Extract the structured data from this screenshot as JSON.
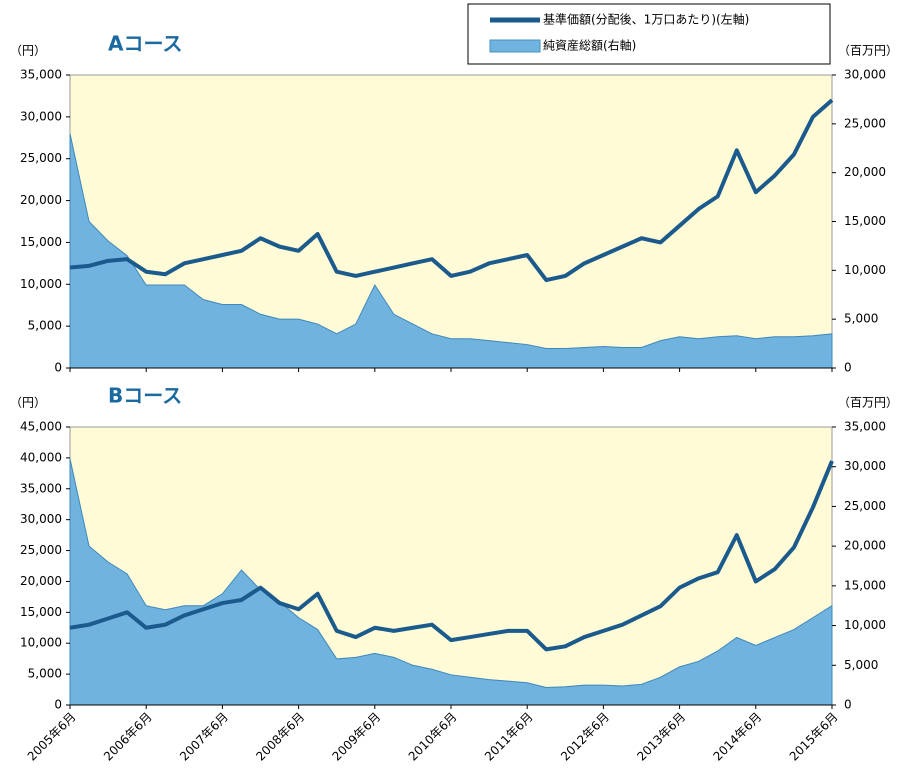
{
  "chart_data": [
    {
      "type": "line",
      "title": "Aコース",
      "y_label": "（円）",
      "y2_label": "（百万円）",
      "categories": [
        null,
        null,
        null,
        null,
        null,
        null,
        null,
        null,
        null,
        null,
        null,
        null,
        null,
        null,
        null,
        null,
        null,
        null,
        null,
        null,
        null,
        null,
        null,
        null,
        null,
        null,
        null,
        null,
        null,
        null,
        null,
        null,
        null,
        null,
        null,
        null,
        null,
        null,
        null,
        null,
        null
      ],
      "ylim": [
        0,
        35000
      ],
      "yticks": [
        0,
        {
          "value": 5000,
          "label": "5,000"
        },
        {
          "value": 10000,
          "label": "10,000"
        },
        {
          "value": 15000,
          "label": "15,000"
        },
        {
          "value": 20000,
          "label": "20,000"
        },
        {
          "value": 25000,
          "label": "25,000"
        },
        {
          "value": 30000,
          "label": "30,000"
        },
        {
          "value": 35000,
          "label": "35,000"
        }
      ],
      "y2lim": [
        0,
        30000
      ],
      "y2ticks": [
        0,
        {
          "value": 5000,
          "label": "5,000"
        },
        {
          "value": 10000,
          "label": "10,000"
        },
        {
          "value": 15000,
          "label": "15,000"
        },
        {
          "value": 20000,
          "label": "20,000"
        },
        {
          "value": 25000,
          "label": "25,000"
        },
        {
          "value": 30000,
          "label": "30,000"
        }
      ],
      "series": [
        {
          "name": "純資産総額(右軸)",
          "type": "area",
          "axis": "y2",
          "color": "#6fb3de",
          "values": [
            24000,
            15000,
            13000,
            11500,
            8500,
            8500,
            8500,
            7000,
            6500,
            6500,
            5500,
            5000,
            5000,
            4500,
            3500,
            4500,
            8500,
            5500,
            4500,
            3500,
            3000,
            3000,
            2800,
            2600,
            2400,
            2000,
            2000,
            2100,
            2200,
            2100,
            2100,
            2800,
            3200,
            3000,
            3200,
            3300,
            3000,
            3200,
            3200,
            3300,
            3500
          ]
        },
        {
          "name": "基準価額(分配後、1万口あたり)(左軸)",
          "type": "line",
          "color": "#1a5a8c",
          "values": [
            12000,
            12200,
            12800,
            13000,
            11500,
            11200,
            12500,
            13000,
            13500,
            14000,
            15500,
            14500,
            14000,
            16000,
            11500,
            11000,
            11500,
            12000,
            12500,
            13000,
            11000,
            11500,
            12500,
            13000,
            13500,
            10500,
            11000,
            12500,
            13500,
            14500,
            15500,
            15000,
            17000,
            19000,
            20500,
            26000,
            21000,
            23000,
            25500,
            30000,
            32000
          ]
        }
      ]
    },
    {
      "type": "line",
      "title": "Bコース",
      "y_label": "（円）",
      "y2_label": "（百万円）",
      "categories": [
        "2005年6月",
        null,
        null,
        null,
        "2006年6月",
        null,
        null,
        null,
        "2007年6月",
        null,
        null,
        null,
        "2008年6月",
        null,
        null,
        null,
        "2009年6月",
        null,
        null,
        null,
        "2010年6月",
        null,
        null,
        null,
        "2011年6月",
        null,
        null,
        null,
        "2012年6月",
        null,
        null,
        null,
        "2013年6月",
        null,
        null,
        null,
        "2014年6月",
        null,
        null,
        null,
        "2015年6月"
      ],
      "ylim": [
        0,
        45000
      ],
      "yticks": [
        0,
        {
          "value": 5000,
          "label": "5,000"
        },
        {
          "value": 10000,
          "label": "10,000"
        },
        {
          "value": 15000,
          "label": "15,000"
        },
        {
          "value": 20000,
          "label": "20,000"
        },
        {
          "value": 25000,
          "label": "25,000"
        },
        {
          "value": 30000,
          "label": "30,000"
        },
        {
          "value": 35000,
          "label": "35,000"
        },
        {
          "value": 40000,
          "label": "40,000"
        },
        {
          "value": 45000,
          "label": "45,000"
        }
      ],
      "y2lim": [
        0,
        35000
      ],
      "y2ticks": [
        0,
        {
          "value": 5000,
          "label": "5,000"
        },
        {
          "value": 10000,
          "label": "10,000"
        },
        {
          "value": 15000,
          "label": "15,000"
        },
        {
          "value": 20000,
          "label": "20,000"
        },
        {
          "value": 25000,
          "label": "25,000"
        },
        {
          "value": 30000,
          "label": "30,000"
        },
        {
          "value": 35000,
          "label": "35,000"
        }
      ],
      "series": [
        {
          "type": "area",
          "axis": "y2",
          "color": "#6fb3de",
          "values": [
            31000,
            20000,
            18000,
            16500,
            12500,
            12000,
            12500,
            12500,
            14000,
            17000,
            14500,
            13000,
            11000,
            9500,
            5800,
            6000,
            6500,
            6000,
            5000,
            4500,
            3800,
            3500,
            3200,
            3000,
            2800,
            2200,
            2300,
            2500,
            2500,
            2400,
            2600,
            3500,
            4800,
            5500,
            6800,
            8500,
            7500,
            8500,
            9500,
            11000,
            12500
          ]
        },
        {
          "type": "line",
          "color": "#1a5a8c",
          "values": [
            12500,
            13000,
            14000,
            15000,
            12500,
            13000,
            14500,
            15500,
            16500,
            17000,
            19000,
            16500,
            15500,
            18000,
            12000,
            11000,
            12500,
            12000,
            12500,
            13000,
            10500,
            11000,
            11500,
            12000,
            12000,
            9000,
            9500,
            11000,
            12000,
            13000,
            14500,
            16000,
            19000,
            20500,
            21500,
            27500,
            20000,
            22000,
            25500,
            32000,
            39500
          ]
        }
      ]
    }
  ]
}
